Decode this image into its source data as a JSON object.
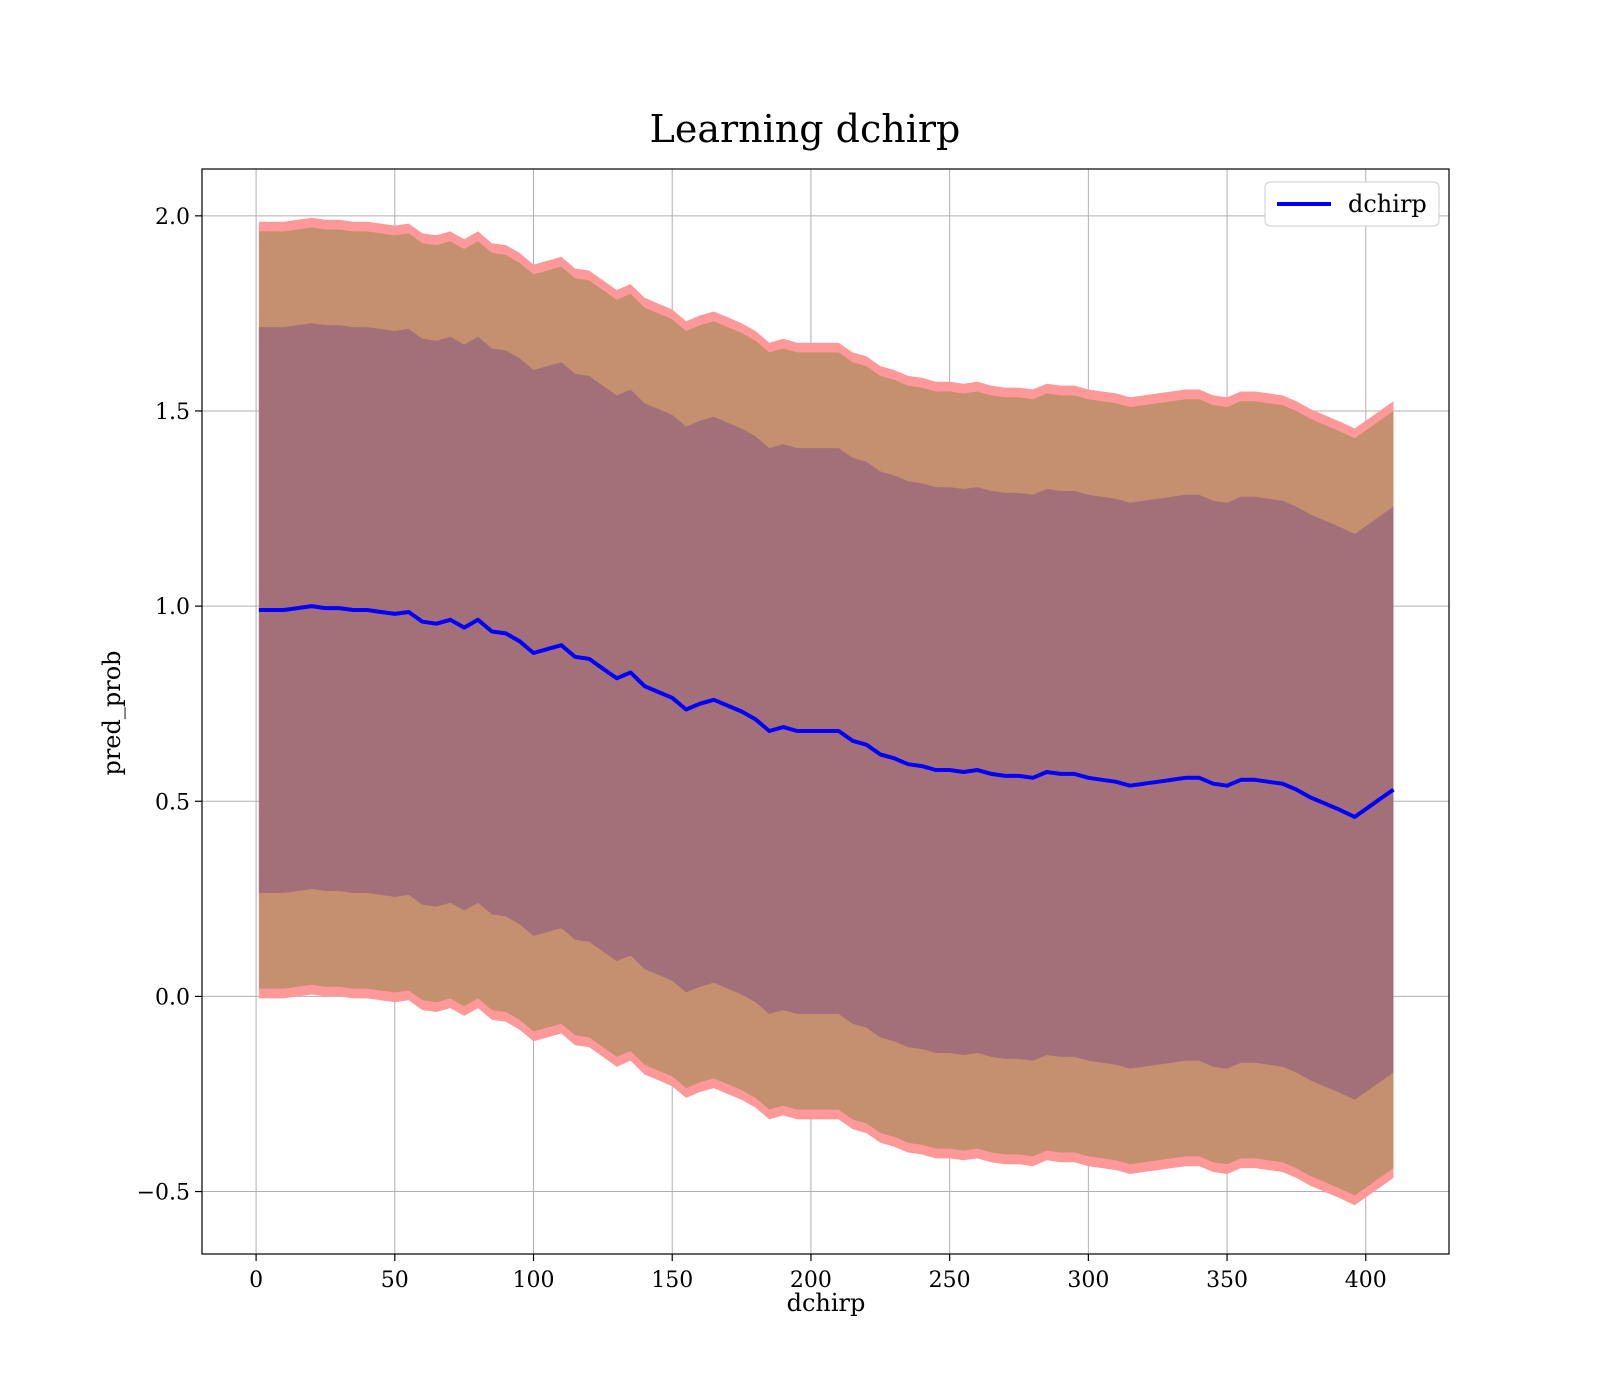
{
  "chart_data": {
    "type": "line",
    "title": "Learning dchirp",
    "xlabel": "dchirp",
    "ylabel": "pred_prob",
    "xlim": [
      -19.5,
      430
    ],
    "ylim": [
      -0.66,
      2.12
    ],
    "xticks": [
      0,
      50,
      100,
      150,
      200,
      250,
      300,
      350,
      400
    ],
    "yticks": [
      -0.5,
      0.0,
      0.5,
      1.0,
      1.5,
      2.0
    ],
    "ytick_labels": [
      "−0.5",
      "0.0",
      "0.5",
      "1.0",
      "1.5",
      "2.0"
    ],
    "grid": true,
    "legend_position": "top-right",
    "colors": {
      "line": "#0000ff",
      "outer_band": "#ff9999",
      "middle_band": "#c4906f",
      "inner_band": "#a3707a",
      "grid": "#b0b0b0"
    },
    "series": [
      {
        "name": "dchirp",
        "x": [
          1,
          5,
          10,
          15,
          20,
          25,
          30,
          35,
          40,
          45,
          50,
          55,
          60,
          65,
          70,
          75,
          80,
          85,
          90,
          95,
          100,
          105,
          110,
          115,
          120,
          125,
          130,
          135,
          140,
          145,
          150,
          155,
          160,
          165,
          170,
          175,
          180,
          185,
          190,
          195,
          200,
          205,
          210,
          215,
          220,
          225,
          230,
          235,
          240,
          245,
          250,
          255,
          260,
          265,
          270,
          275,
          280,
          285,
          290,
          295,
          300,
          305,
          310,
          315,
          320,
          325,
          330,
          335,
          340,
          345,
          350,
          355,
          360,
          365,
          370,
          375,
          380,
          385,
          390,
          396,
          400,
          405,
          410
        ],
        "y": [
          0.99,
          0.99,
          0.99,
          0.995,
          1.0,
          0.995,
          0.995,
          0.99,
          0.99,
          0.985,
          0.98,
          0.985,
          0.96,
          0.955,
          0.965,
          0.945,
          0.965,
          0.935,
          0.93,
          0.91,
          0.88,
          0.89,
          0.9,
          0.87,
          0.865,
          0.84,
          0.815,
          0.83,
          0.795,
          0.78,
          0.765,
          0.735,
          0.75,
          0.76,
          0.745,
          0.73,
          0.71,
          0.68,
          0.69,
          0.68,
          0.68,
          0.68,
          0.68,
          0.655,
          0.645,
          0.62,
          0.61,
          0.595,
          0.59,
          0.58,
          0.58,
          0.575,
          0.58,
          0.57,
          0.565,
          0.565,
          0.56,
          0.575,
          0.57,
          0.57,
          0.56,
          0.555,
          0.55,
          0.54,
          0.545,
          0.55,
          0.555,
          0.56,
          0.56,
          0.545,
          0.54,
          0.555,
          0.555,
          0.55,
          0.545,
          0.53,
          0.51,
          0.495,
          0.48,
          0.46,
          0.48,
          0.505,
          0.53
        ]
      }
    ]
  }
}
